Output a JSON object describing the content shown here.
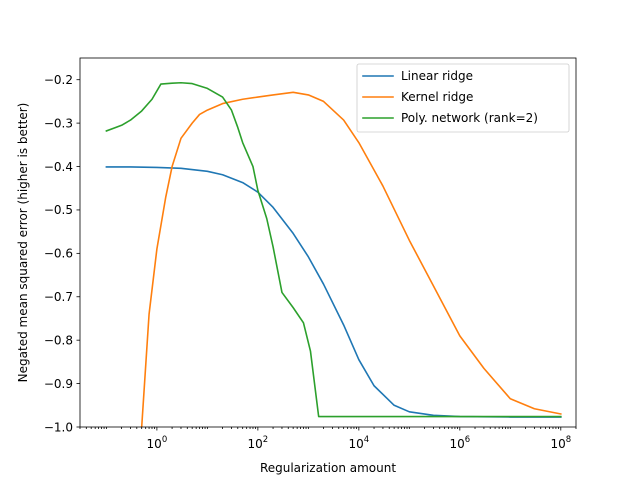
{
  "chart_data": {
    "type": "line",
    "title": "",
    "xlabel": "Regularization amount",
    "ylabel": "Negated mean squared error (higher is better)",
    "xscale": "log",
    "xlim": [
      0.03,
      200000000
    ],
    "ylim": [
      -1.0,
      -0.15
    ],
    "x_ticks": [
      {
        "value": 1,
        "base": "10",
        "exp": "0"
      },
      {
        "value": 100,
        "base": "10",
        "exp": "2"
      },
      {
        "value": 10000,
        "base": "10",
        "exp": "4"
      },
      {
        "value": 1000000,
        "base": "10",
        "exp": "6"
      },
      {
        "value": 100000000,
        "base": "10",
        "exp": "8"
      }
    ],
    "y_ticks": [
      {
        "value": -0.2,
        "label": "−0.2"
      },
      {
        "value": -0.3,
        "label": "−0.3"
      },
      {
        "value": -0.4,
        "label": "−0.4"
      },
      {
        "value": -0.5,
        "label": "−0.5"
      },
      {
        "value": -0.6,
        "label": "−0.6"
      },
      {
        "value": -0.7,
        "label": "−0.7"
      },
      {
        "value": -0.8,
        "label": "−0.8"
      },
      {
        "value": -0.9,
        "label": "−0.9"
      },
      {
        "value": -1.0,
        "label": "−1.0"
      }
    ],
    "legend_position": "top-right",
    "grid": false,
    "series": [
      {
        "name": "Linear ridge",
        "color": "#1f77b4",
        "x": [
          0.1,
          0.3,
          1,
          3,
          10,
          20,
          50,
          100,
          200,
          500,
          1000,
          2000,
          5000,
          10000,
          20000,
          50000,
          100000,
          300000,
          1000000,
          10000000,
          100000000
        ],
        "y": [
          -0.401,
          -0.401,
          -0.402,
          -0.404,
          -0.411,
          -0.419,
          -0.437,
          -0.459,
          -0.494,
          -0.554,
          -0.608,
          -0.671,
          -0.765,
          -0.845,
          -0.905,
          -0.95,
          -0.965,
          -0.973,
          -0.976,
          -0.977,
          -0.977
        ]
      },
      {
        "name": "Kernel ridge",
        "color": "#ff7f0e",
        "x": [
          0.5,
          0.7,
          1,
          1.5,
          2,
          3,
          5,
          7,
          10,
          20,
          50,
          100,
          200,
          500,
          1000,
          2000,
          5000,
          10000,
          30000,
          100000,
          300000,
          1000000,
          3000000,
          10000000,
          30000000,
          100000000
        ],
        "y": [
          -1.0,
          -0.74,
          -0.59,
          -0.47,
          -0.4,
          -0.335,
          -0.3,
          -0.28,
          -0.27,
          -0.255,
          -0.245,
          -0.24,
          -0.235,
          -0.229,
          -0.235,
          -0.25,
          -0.293,
          -0.345,
          -0.445,
          -0.57,
          -0.675,
          -0.79,
          -0.865,
          -0.935,
          -0.958,
          -0.97
        ]
      },
      {
        "name": "Poly. network (rank=2)",
        "color": "#2ca02c",
        "x": [
          0.1,
          0.2,
          0.3,
          0.5,
          0.8,
          1.2,
          2,
          3,
          5,
          10,
          20,
          30,
          40,
          50,
          80,
          100,
          150,
          200,
          300,
          500,
          800,
          1100,
          1600,
          2000,
          10000,
          100000,
          1000000,
          10000000,
          100000000
        ],
        "y": [
          -0.318,
          -0.305,
          -0.293,
          -0.272,
          -0.245,
          -0.21,
          -0.208,
          -0.207,
          -0.209,
          -0.22,
          -0.24,
          -0.27,
          -0.31,
          -0.345,
          -0.4,
          -0.455,
          -0.52,
          -0.585,
          -0.69,
          -0.725,
          -0.76,
          -0.825,
          -0.976,
          -0.976,
          -0.976,
          -0.976,
          -0.976,
          -0.976,
          -0.976
        ]
      }
    ]
  }
}
